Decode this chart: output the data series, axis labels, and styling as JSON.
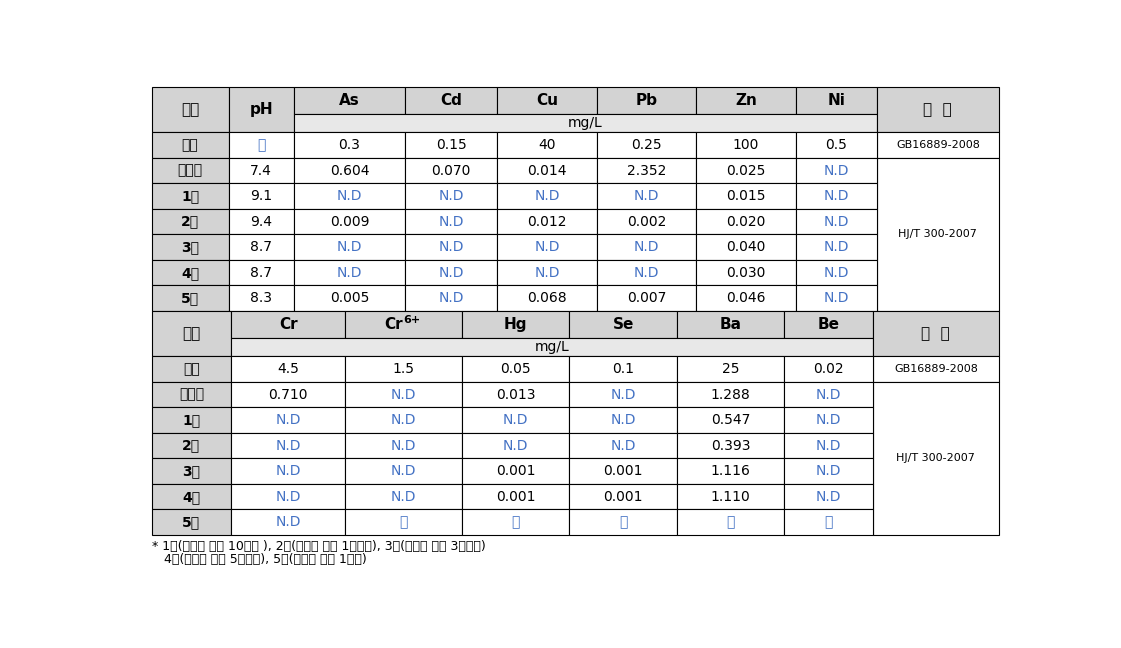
{
  "top_table": {
    "rows": [
      [
        "기준",
        "－",
        "0.3",
        "0.15",
        "40",
        "0.25",
        "100",
        "0.5",
        "GB16889-2008"
      ],
      [
        "처리전",
        "7.4",
        "0.604",
        "0.070",
        "0.014",
        "2.352",
        "0.025",
        "N.D",
        ""
      ],
      [
        "1회",
        "9.1",
        "N.D",
        "N.D",
        "N.D",
        "N.D",
        "0.015",
        "N.D",
        ""
      ],
      [
        "2회",
        "9.4",
        "0.009",
        "N.D",
        "0.012",
        "0.002",
        "0.020",
        "N.D",
        "HJ/T 300-2007"
      ],
      [
        "3회",
        "8.7",
        "N.D",
        "N.D",
        "N.D",
        "N.D",
        "0.040",
        "N.D",
        ""
      ],
      [
        "4회",
        "8.7",
        "N.D",
        "N.D",
        "N.D",
        "N.D",
        "0.030",
        "N.D",
        ""
      ],
      [
        "5회",
        "8.3",
        "0.005",
        "N.D",
        "0.068",
        "0.007",
        "0.046",
        "N.D",
        ""
      ]
    ]
  },
  "bottom_table": {
    "rows": [
      [
        "기준",
        "4.5",
        "1.5",
        "0.05",
        "0.1",
        "25",
        "0.02",
        "GB16889-2008"
      ],
      [
        "처리전",
        "0.710",
        "N.D",
        "0.013",
        "N.D",
        "1.288",
        "N.D",
        ""
      ],
      [
        "1회",
        "N.D",
        "N.D",
        "N.D",
        "N.D",
        "0.547",
        "N.D",
        ""
      ],
      [
        "2회",
        "N.D",
        "N.D",
        "N.D",
        "N.D",
        "0.393",
        "N.D",
        "HJ/T 300-2007"
      ],
      [
        "3회",
        "N.D",
        "N.D",
        "0.001",
        "0.001",
        "1.116",
        "N.D",
        ""
      ],
      [
        "4회",
        "N.D",
        "N.D",
        "0.001",
        "0.001",
        "1.110",
        "N.D",
        ""
      ],
      [
        "5회",
        "N.D",
        "－",
        "－",
        "－",
        "－",
        "－",
        ""
      ]
    ]
  },
  "top_metals": [
    "As",
    "Cd",
    "Cu",
    "Pb",
    "Zn",
    "Ni"
  ],
  "bot_metals": [
    "Cr",
    "Hg",
    "Se",
    "Ba",
    "Be"
  ],
  "footnote_line1": "* 1회(안정화 처리 10일후 ), 2회(안정화 처리 1개월후), 3회(안정화 처리 3개월후)",
  "footnote_line2": "   4회(안정화 처리 5개월후), 5회(안정화 처리 1년후)",
  "header_bg": "#D3D3D3",
  "subheader_bg": "#E8E8E8",
  "cell_bg": "#FFFFFF",
  "border_color": "#000000",
  "text_black": "#000000",
  "text_blue": "#4472C4",
  "text_red_brown": "#8B2500",
  "fs_header": 11,
  "fs_data": 10,
  "fs_note": 8,
  "fs_foot": 9
}
